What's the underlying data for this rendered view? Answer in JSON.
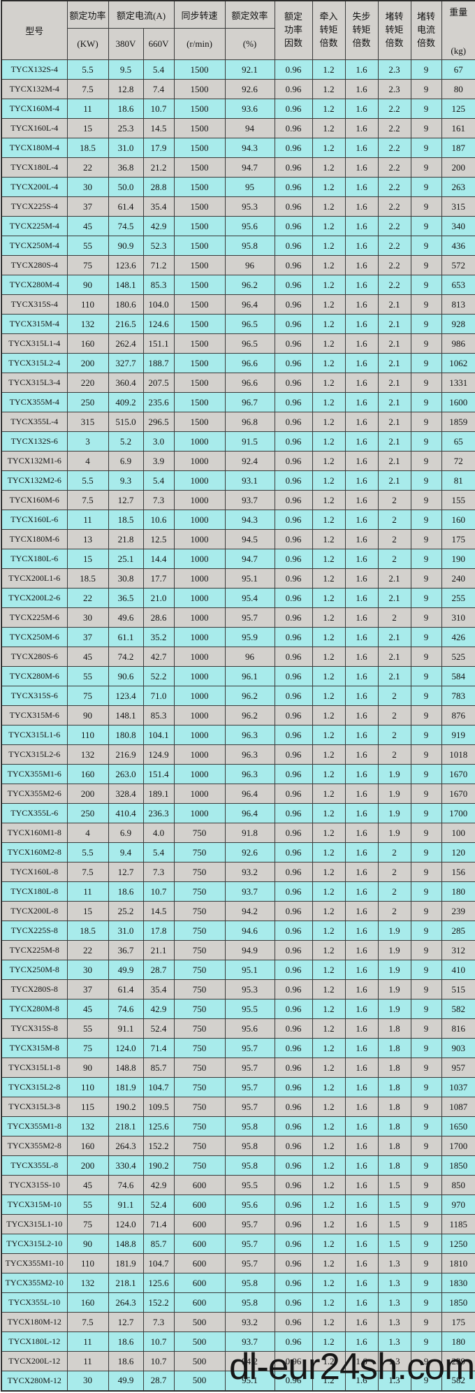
{
  "header": {
    "model": "型号",
    "rated_power": "额定功率",
    "rated_power_unit": "(KW)",
    "rated_current": "额定电流(A)",
    "v380": "380V",
    "v660": "660V",
    "sync_speed": "同步转速",
    "sync_speed_unit": "(r/min)",
    "rated_efficiency": "额定效率",
    "rated_efficiency_unit": "(%)",
    "power_factor": "额定\n功率\n因数",
    "pull_in_torque": "牵入\n转矩\n倍数",
    "pull_out_torque": "失步\n转矩\n倍数",
    "locked_rotor_torque": "堵转\n转矩\n倍数",
    "locked_rotor_current": "堵转\n电流\n倍数",
    "weight": "重量",
    "weight_unit": "(kg)"
  },
  "colors": {
    "row_cyan": "#a8ebeb",
    "row_gray": "#d3d1cd",
    "header_gray": "#d3d1cd",
    "border": "#3a3a3a"
  },
  "watermark": {
    "text": "dl-eur24sh.com"
  },
  "table": {
    "column_ids": [
      "model",
      "power-kw",
      "current-380v",
      "current-660v",
      "sync-speed",
      "efficiency",
      "power-factor",
      "pull-in-torque",
      "pull-out-torque",
      "locked-torque",
      "locked-current",
      "weight"
    ],
    "rows": [
      {
        "bg": "c",
        "cells": [
          "TYCX132S-4",
          "5.5",
          "9.5",
          "5.4",
          "1500",
          "92.1",
          "0.96",
          "1.2",
          "1.6",
          "2.3",
          "9",
          "67"
        ]
      },
      {
        "bg": "g",
        "cells": [
          "TYCX132M-4",
          "7.5",
          "12.8",
          "7.4",
          "1500",
          "92.6",
          "0.96",
          "1.2",
          "1.6",
          "2.3",
          "9",
          "80"
        ]
      },
      {
        "bg": "c",
        "cells": [
          "TYCX160M-4",
          "11",
          "18.6",
          "10.7",
          "1500",
          "93.6",
          "0.96",
          "1.2",
          "1.6",
          "2.2",
          "9",
          "125"
        ]
      },
      {
        "bg": "g",
        "cells": [
          "TYCX160L-4",
          "15",
          "25.3",
          "14.5",
          "1500",
          "94",
          "0.96",
          "1.2",
          "1.6",
          "2.2",
          "9",
          "161"
        ]
      },
      {
        "bg": "c",
        "cells": [
          "TYCX180M-4",
          "18.5",
          "31.0",
          "17.9",
          "1500",
          "94.3",
          "0.96",
          "1.2",
          "1.6",
          "2.2",
          "9",
          "187"
        ]
      },
      {
        "bg": "g",
        "cells": [
          "TYCX180L-4",
          "22",
          "36.8",
          "21.2",
          "1500",
          "94.7",
          "0.96",
          "1.2",
          "1.6",
          "2.2",
          "9",
          "200"
        ]
      },
      {
        "bg": "c",
        "cells": [
          "TYCX200L-4",
          "30",
          "50.0",
          "28.8",
          "1500",
          "95",
          "0.96",
          "1.2",
          "1.6",
          "2.2",
          "9",
          "263"
        ]
      },
      {
        "bg": "g",
        "cells": [
          "TYCX225S-4",
          "37",
          "61.4",
          "35.4",
          "1500",
          "95.3",
          "0.96",
          "1.2",
          "1.6",
          "2.2",
          "9",
          "315"
        ]
      },
      {
        "bg": "c",
        "cells": [
          "TYCX225M-4",
          "45",
          "74.5",
          "42.9",
          "1500",
          "95.6",
          "0.96",
          "1.2",
          "1.6",
          "2.2",
          "9",
          "340"
        ]
      },
      {
        "bg": "c",
        "cells": [
          "TYCX250M-4",
          "55",
          "90.9",
          "52.3",
          "1500",
          "95.8",
          "0.96",
          "1.2",
          "1.6",
          "2.2",
          "9",
          "436"
        ]
      },
      {
        "bg": "g",
        "cells": [
          "TYCX280S-4",
          "75",
          "123.6",
          "71.2",
          "1500",
          "96",
          "0.96",
          "1.2",
          "1.6",
          "2.2",
          "9",
          "572"
        ]
      },
      {
        "bg": "c",
        "cells": [
          "TYCX280M-4",
          "90",
          "148.1",
          "85.3",
          "1500",
          "96.2",
          "0.96",
          "1.2",
          "1.6",
          "2.2",
          "9",
          "653"
        ]
      },
      {
        "bg": "g",
        "cells": [
          "TYCX315S-4",
          "110",
          "180.6",
          "104.0",
          "1500",
          "96.4",
          "0.96",
          "1.2",
          "1.6",
          "2.1",
          "9",
          "813"
        ]
      },
      {
        "bg": "c",
        "cells": [
          "TYCX315M-4",
          "132",
          "216.5",
          "124.6",
          "1500",
          "96.5",
          "0.96",
          "1.2",
          "1.6",
          "2.1",
          "9",
          "928"
        ]
      },
      {
        "bg": "g",
        "cells": [
          "TYCX315L1-4",
          "160",
          "262.4",
          "151.1",
          "1500",
          "96.5",
          "0.96",
          "1.2",
          "1.6",
          "2.1",
          "9",
          "986"
        ]
      },
      {
        "bg": "c",
        "cells": [
          "TYCX315L2-4",
          "200",
          "327.7",
          "188.7",
          "1500",
          "96.6",
          "0.96",
          "1.2",
          "1.6",
          "2.1",
          "9",
          "1062"
        ]
      },
      {
        "bg": "g",
        "cells": [
          "TYCX315L3-4",
          "220",
          "360.4",
          "207.5",
          "1500",
          "96.6",
          "0.96",
          "1.2",
          "1.6",
          "2.1",
          "9",
          "1331"
        ]
      },
      {
        "bg": "c",
        "cells": [
          "TYCX355M-4",
          "250",
          "409.2",
          "235.6",
          "1500",
          "96.7",
          "0.96",
          "1.2",
          "1.6",
          "2.1",
          "9",
          "1600"
        ]
      },
      {
        "bg": "g",
        "cells": [
          "TYCX355L-4",
          "315",
          "515.0",
          "296.5",
          "1500",
          "96.8",
          "0.96",
          "1.2",
          "1.6",
          "2.1",
          "9",
          "1859"
        ]
      },
      {
        "bg": "c",
        "cells": [
          "TYCX132S-6",
          "3",
          "5.2",
          "3.0",
          "1000",
          "91.5",
          "0.96",
          "1.2",
          "1.6",
          "2.1",
          "9",
          "65"
        ]
      },
      {
        "bg": "g",
        "cells": [
          "TYCX132M1-6",
          "4",
          "6.9",
          "3.9",
          "1000",
          "92.4",
          "0.96",
          "1.2",
          "1.6",
          "2.1",
          "9",
          "72"
        ]
      },
      {
        "bg": "c",
        "cells": [
          "TYCX132M2-6",
          "5.5",
          "9.3",
          "5.4",
          "1000",
          "93.1",
          "0.96",
          "1.2",
          "1.6",
          "2.1",
          "9",
          "81"
        ]
      },
      {
        "bg": "g",
        "cells": [
          "TYCX160M-6",
          "7.5",
          "12.7",
          "7.3",
          "1000",
          "93.7",
          "0.96",
          "1.2",
          "1.6",
          "2",
          "9",
          "155"
        ]
      },
      {
        "bg": "c",
        "cells": [
          "TYCX160L-6",
          "11",
          "18.5",
          "10.6",
          "1000",
          "94.3",
          "0.96",
          "1.2",
          "1.6",
          "2",
          "9",
          "160"
        ]
      },
      {
        "bg": "g",
        "cells": [
          "TYCX180M-6",
          "13",
          "21.8",
          "12.5",
          "1000",
          "94.5",
          "0.96",
          "1.2",
          "1.6",
          "2",
          "9",
          "175"
        ]
      },
      {
        "bg": "c",
        "cells": [
          "TYCX180L-6",
          "15",
          "25.1",
          "14.4",
          "1000",
          "94.7",
          "0.96",
          "1.2",
          "1.6",
          "2",
          "9",
          "190"
        ]
      },
      {
        "bg": "g",
        "cells": [
          "TYCX200L1-6",
          "18.5",
          "30.8",
          "17.7",
          "1000",
          "95.1",
          "0.96",
          "1.2",
          "1.6",
          "2.1",
          "9",
          "240"
        ]
      },
      {
        "bg": "c",
        "cells": [
          "TYCX200L2-6",
          "22",
          "36.5",
          "21.0",
          "1000",
          "95.4",
          "0.96",
          "1.2",
          "1.6",
          "2.1",
          "9",
          "255"
        ]
      },
      {
        "bg": "g",
        "cells": [
          "TYCX225M-6",
          "30",
          "49.6",
          "28.6",
          "1000",
          "95.7",
          "0.96",
          "1.2",
          "1.6",
          "2",
          "9",
          "310"
        ]
      },
      {
        "bg": "c",
        "cells": [
          "TYCX250M-6",
          "37",
          "61.1",
          "35.2",
          "1000",
          "95.9",
          "0.96",
          "1.2",
          "1.6",
          "2.1",
          "9",
          "426"
        ]
      },
      {
        "bg": "g",
        "cells": [
          "TYCX280S-6",
          "45",
          "74.2",
          "42.7",
          "1000",
          "96",
          "0.96",
          "1.2",
          "1.6",
          "2.1",
          "9",
          "525"
        ]
      },
      {
        "bg": "c",
        "cells": [
          "TYCX280M-6",
          "55",
          "90.6",
          "52.2",
          "1000",
          "96.1",
          "0.96",
          "1.2",
          "1.6",
          "2.1",
          "9",
          "584"
        ]
      },
      {
        "bg": "c",
        "cells": [
          "TYCX315S-6",
          "75",
          "123.4",
          "71.0",
          "1000",
          "96.2",
          "0.96",
          "1.2",
          "1.6",
          "2",
          "9",
          "783"
        ]
      },
      {
        "bg": "g",
        "cells": [
          "TYCX315M-6",
          "90",
          "148.1",
          "85.3",
          "1000",
          "96.2",
          "0.96",
          "1.2",
          "1.6",
          "2",
          "9",
          "876"
        ]
      },
      {
        "bg": "c",
        "cells": [
          "TYCX315L1-6",
          "110",
          "180.8",
          "104.1",
          "1000",
          "96.3",
          "0.96",
          "1.2",
          "1.6",
          "2",
          "9",
          "919"
        ]
      },
      {
        "bg": "g",
        "cells": [
          "TYCX315L2-6",
          "132",
          "216.9",
          "124.9",
          "1000",
          "96.3",
          "0.96",
          "1.2",
          "1.6",
          "2",
          "9",
          "1018"
        ]
      },
      {
        "bg": "c",
        "cells": [
          "TYCX355M1-6",
          "160",
          "263.0",
          "151.4",
          "1000",
          "96.3",
          "0.96",
          "1.2",
          "1.6",
          "1.9",
          "9",
          "1670"
        ]
      },
      {
        "bg": "g",
        "cells": [
          "TYCX355M2-6",
          "200",
          "328.4",
          "189.1",
          "1000",
          "96.4",
          "0.96",
          "1.2",
          "1.6",
          "1.9",
          "9",
          "1670"
        ]
      },
      {
        "bg": "c",
        "cells": [
          "TYCX355L-6",
          "250",
          "410.4",
          "236.3",
          "1000",
          "96.4",
          "0.96",
          "1.2",
          "1.6",
          "1.9",
          "9",
          "1700"
        ]
      },
      {
        "bg": "g",
        "cells": [
          "TYCX160M1-8",
          "4",
          "6.9",
          "4.0",
          "750",
          "91.8",
          "0.96",
          "1.2",
          "1.6",
          "1.9",
          "9",
          "100"
        ]
      },
      {
        "bg": "c",
        "cells": [
          "TYCX160M2-8",
          "5.5",
          "9.4",
          "5.4",
          "750",
          "92.6",
          "0.96",
          "1.2",
          "1.6",
          "2",
          "9",
          "120"
        ]
      },
      {
        "bg": "g",
        "cells": [
          "TYCX160L-8",
          "7.5",
          "12.7",
          "7.3",
          "750",
          "93.2",
          "0.96",
          "1.2",
          "1.6",
          "2",
          "9",
          "156"
        ]
      },
      {
        "bg": "c",
        "cells": [
          "TYCX180L-8",
          "11",
          "18.6",
          "10.7",
          "750",
          "93.7",
          "0.96",
          "1.2",
          "1.6",
          "2",
          "9",
          "180"
        ]
      },
      {
        "bg": "g",
        "cells": [
          "TYCX200L-8",
          "15",
          "25.2",
          "14.5",
          "750",
          "94.2",
          "0.96",
          "1.2",
          "1.6",
          "2",
          "9",
          "239"
        ]
      },
      {
        "bg": "c",
        "cells": [
          "TYCX225S-8",
          "18.5",
          "31.0",
          "17.8",
          "750",
          "94.6",
          "0.96",
          "1.2",
          "1.6",
          "1.9",
          "9",
          "285"
        ]
      },
      {
        "bg": "g",
        "cells": [
          "TYCX225M-8",
          "22",
          "36.7",
          "21.1",
          "750",
          "94.9",
          "0.96",
          "1.2",
          "1.6",
          "1.9",
          "9",
          "312"
        ]
      },
      {
        "bg": "c",
        "cells": [
          "TYCX250M-8",
          "30",
          "49.9",
          "28.7",
          "750",
          "95.1",
          "0.96",
          "1.2",
          "1.6",
          "1.9",
          "9",
          "410"
        ]
      },
      {
        "bg": "g",
        "cells": [
          "TYCX280S-8",
          "37",
          "61.4",
          "35.4",
          "750",
          "95.3",
          "0.96",
          "1.2",
          "1.6",
          "1.9",
          "9",
          "515"
        ]
      },
      {
        "bg": "c",
        "cells": [
          "TYCX280M-8",
          "45",
          "74.6",
          "42.9",
          "750",
          "95.5",
          "0.96",
          "1.2",
          "1.6",
          "1.9",
          "9",
          "582"
        ]
      },
      {
        "bg": "g",
        "cells": [
          "TYCX315S-8",
          "55",
          "91.1",
          "52.4",
          "750",
          "95.6",
          "0.96",
          "1.2",
          "1.6",
          "1.8",
          "9",
          "816"
        ]
      },
      {
        "bg": "c",
        "cells": [
          "TYCX315M-8",
          "75",
          "124.0",
          "71.4",
          "750",
          "95.7",
          "0.96",
          "1.2",
          "1.6",
          "1.8",
          "9",
          "903"
        ]
      },
      {
        "bg": "g",
        "cells": [
          "TYCX315L1-8",
          "90",
          "148.8",
          "85.7",
          "750",
          "95.7",
          "0.96",
          "1.2",
          "1.6",
          "1.8",
          "9",
          "957"
        ]
      },
      {
        "bg": "c",
        "cells": [
          "TYCX315L2-8",
          "110",
          "181.9",
          "104.7",
          "750",
          "95.7",
          "0.96",
          "1.2",
          "1.6",
          "1.8",
          "9",
          "1037"
        ]
      },
      {
        "bg": "g",
        "cells": [
          "TYCX315L3-8",
          "115",
          "190.2",
          "109.5",
          "750",
          "95.7",
          "0.96",
          "1.2",
          "1.6",
          "1.8",
          "9",
          "1087"
        ]
      },
      {
        "bg": "c",
        "cells": [
          "TYCX355M1-8",
          "132",
          "218.1",
          "125.6",
          "750",
          "95.8",
          "0.96",
          "1.2",
          "1.6",
          "1.8",
          "9",
          "1650"
        ]
      },
      {
        "bg": "g",
        "cells": [
          "TYCX355M2-8",
          "160",
          "264.3",
          "152.2",
          "750",
          "95.8",
          "0.96",
          "1.2",
          "1.6",
          "1.8",
          "9",
          "1700"
        ]
      },
      {
        "bg": "c",
        "cells": [
          "TYCX355L-8",
          "200",
          "330.4",
          "190.2",
          "750",
          "95.8",
          "0.96",
          "1.2",
          "1.6",
          "1.8",
          "9",
          "1850"
        ]
      },
      {
        "bg": "g",
        "cells": [
          "TYCX315S-10",
          "45",
          "74.6",
          "42.9",
          "600",
          "95.5",
          "0.96",
          "1.2",
          "1.6",
          "1.5",
          "9",
          "850"
        ]
      },
      {
        "bg": "c",
        "cells": [
          "TYCX315M-10",
          "55",
          "91.1",
          "52.4",
          "600",
          "95.6",
          "0.96",
          "1.2",
          "1.6",
          "1.5",
          "9",
          "970"
        ]
      },
      {
        "bg": "g",
        "cells": [
          "TYCX315L1-10",
          "75",
          "124.0",
          "71.4",
          "600",
          "95.7",
          "0.96",
          "1.2",
          "1.6",
          "1.5",
          "9",
          "1185"
        ]
      },
      {
        "bg": "c",
        "cells": [
          "TYCX315L2-10",
          "90",
          "148.8",
          "85.7",
          "600",
          "95.7",
          "0.96",
          "1.2",
          "1.6",
          "1.5",
          "9",
          "1250"
        ]
      },
      {
        "bg": "g",
        "cells": [
          "TYCX355M1-10",
          "110",
          "181.9",
          "104.7",
          "600",
          "95.7",
          "0.96",
          "1.2",
          "1.6",
          "1.3",
          "9",
          "1810"
        ]
      },
      {
        "bg": "c",
        "cells": [
          "TYCX355M2-10",
          "132",
          "218.1",
          "125.6",
          "600",
          "95.8",
          "0.96",
          "1.2",
          "1.6",
          "1.3",
          "9",
          "1830"
        ]
      },
      {
        "bg": "c",
        "cells": [
          "TYCX355L-10",
          "160",
          "264.3",
          "152.2",
          "600",
          "95.8",
          "0.96",
          "1.2",
          "1.6",
          "1.3",
          "9",
          "1850"
        ]
      },
      {
        "bg": "g",
        "cells": [
          "TYCX180M-12",
          "7.5",
          "12.7",
          "7.3",
          "500",
          "93.2",
          "0.96",
          "1.2",
          "1.6",
          "1.3",
          "9",
          "175"
        ]
      },
      {
        "bg": "c",
        "cells": [
          "TYCX180L-12",
          "11",
          "18.6",
          "10.7",
          "500",
          "93.7",
          "0.96",
          "1.2",
          "1.6",
          "1.3",
          "9",
          "180"
        ]
      },
      {
        "bg": "g",
        "cells": [
          "TYCX200L-12",
          "11",
          "18.6",
          "10.7",
          "500",
          "94.2",
          "0.96",
          "1.2",
          "1.6",
          "1.3",
          "9",
          "239"
        ]
      },
      {
        "bg": "c",
        "cells": [
          "TYCX280M-12",
          "30",
          "49.9",
          "28.7",
          "500",
          "95.1",
          "0.96",
          "1.2",
          "1.6",
          "1.3",
          "9",
          "582"
        ]
      }
    ]
  }
}
